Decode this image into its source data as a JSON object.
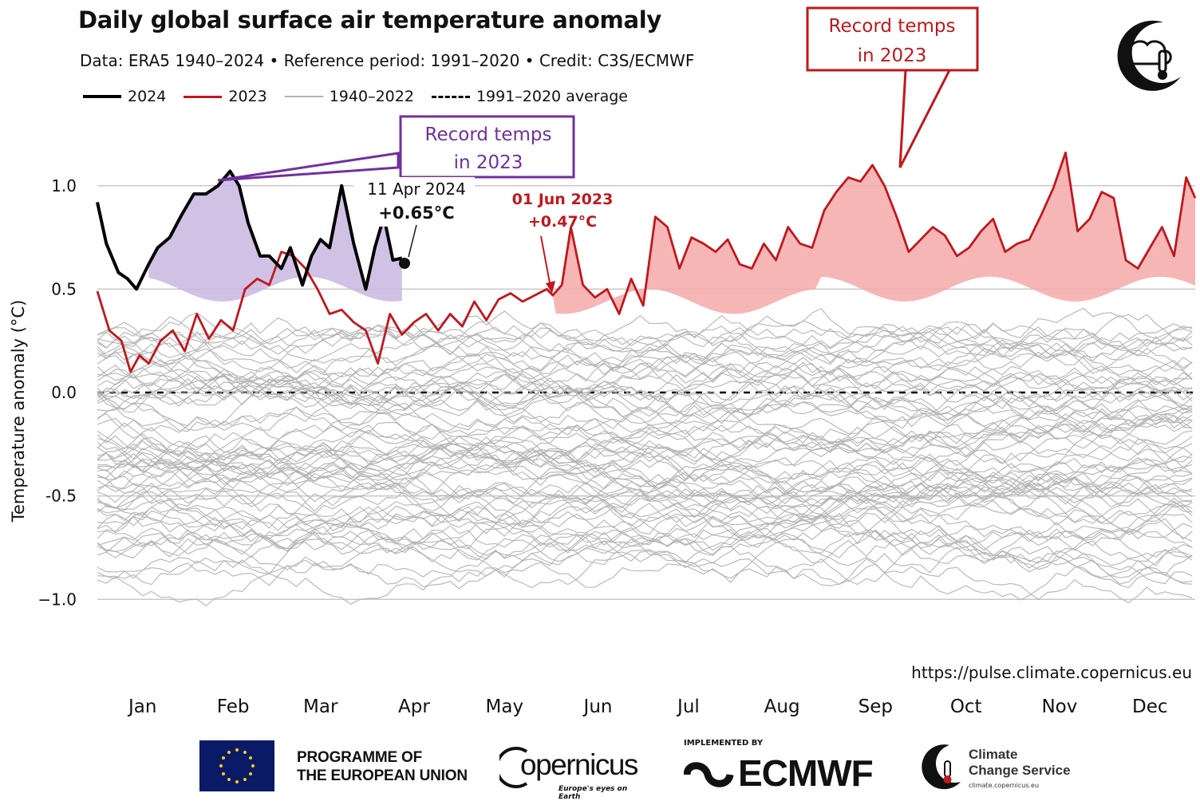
{
  "header": {
    "title": "Daily global surface air temperature anomaly",
    "subtitle": "Data: ERA5 1940–2024  •  Reference period: 1991–2020  •  Credit: C3S/ECMWF"
  },
  "legend": [
    {
      "label": "2024",
      "color": "#000000",
      "style": "solid-thick"
    },
    {
      "label": "2023",
      "color": "#c0181d",
      "style": "solid"
    },
    {
      "label": "1940–2022",
      "color": "#b3b3b3",
      "style": "solid-thin"
    },
    {
      "label": "1991–2020 average",
      "color": "#000000",
      "style": "dashed"
    }
  ],
  "annotations": {
    "record_2024_box": [
      "Record temps",
      "in 2023"
    ],
    "record_2023_box": [
      "Record temps",
      "in 2023"
    ],
    "latest_2024_date": "11 Apr 2024",
    "latest_2024_value": "+0.65°C",
    "jun_2023_date": "01 Jun 2023",
    "jun_2023_value": "+0.47°C"
  },
  "source_url": "https://pulse.climate.copernicus.eu",
  "footer": {
    "eu_line1": "PROGRAMME OF",
    "eu_line2": "THE EUROPEAN UNION",
    "copernicus_word": "opernicus",
    "copernicus_tagline": "Europe's eyes on Earth",
    "ecmwf_implemented": "IMPLEMENTED BY",
    "ecmwf_word": "ECMWF",
    "c3s_line1": "Climate",
    "c3s_line2": "Change Service",
    "c3s_url": "climate.copernicus.eu"
  },
  "colors": {
    "y2024": "#000000",
    "y2023": "#c0181d",
    "historic": "#b3b3b3",
    "fill2024": "#c9b6e0",
    "fill2023": "#f6a9a9",
    "purple": "#7030a0",
    "red": "#c0181d"
  },
  "chart_data": {
    "type": "line",
    "title": "Daily global surface air temperature anomaly",
    "xlabel": "",
    "ylabel": "Temperature anomaly (°C)",
    "x_unit": "day of year",
    "xlim": [
      1,
      365
    ],
    "ylim": [
      -1.35,
      1.3
    ],
    "yticks": [
      -1.0,
      -0.5,
      0.0,
      0.5,
      1.0
    ],
    "ytick_labels": [
      "−1.0",
      "-0.5",
      "0.0",
      "0.5",
      "1.0"
    ],
    "month_labels": [
      "Jan",
      "Feb",
      "Mar",
      "Apr",
      "May",
      "Jun",
      "Jul",
      "Aug",
      "Sep",
      "Oct",
      "Nov",
      "Dec"
    ],
    "month_label_days": [
      16,
      46,
      75,
      106,
      136,
      167,
      197,
      228,
      259,
      289,
      320,
      350
    ],
    "grid": true,
    "series": [
      {
        "name": "2024",
        "x": [
          1,
          4,
          8,
          11,
          14,
          18,
          21,
          25,
          29,
          33,
          37,
          41,
          45,
          48,
          51,
          55,
          58,
          62,
          65,
          69,
          72,
          75,
          78,
          82,
          86,
          90,
          93,
          96,
          99,
          102
        ],
        "y": [
          0.92,
          0.72,
          0.58,
          0.55,
          0.5,
          0.62,
          0.7,
          0.75,
          0.86,
          0.96,
          0.96,
          1.0,
          1.07,
          1.0,
          0.82,
          0.66,
          0.66,
          0.6,
          0.7,
          0.52,
          0.66,
          0.74,
          0.7,
          1.0,
          0.72,
          0.5,
          0.7,
          0.85,
          0.64,
          0.65
        ]
      },
      {
        "name": "2023",
        "x": [
          1,
          5,
          9,
          12,
          15,
          18,
          22,
          26,
          30,
          34,
          38,
          42,
          46,
          50,
          54,
          58,
          62,
          66,
          70,
          74,
          78,
          82,
          86,
          90,
          94,
          98,
          102,
          106,
          110,
          114,
          118,
          122,
          126,
          130,
          134,
          138,
          142,
          146,
          150,
          152,
          155,
          158,
          162,
          166,
          170,
          174,
          178,
          182,
          186,
          190,
          194,
          198,
          202,
          206,
          210,
          214,
          218,
          222,
          226,
          230,
          234,
          238,
          242,
          246,
          250,
          254,
          258,
          262,
          266,
          270,
          274,
          278,
          282,
          286,
          290,
          294,
          298,
          302,
          306,
          310,
          314,
          318,
          322,
          326,
          330,
          334,
          338,
          342,
          346,
          350,
          354,
          358,
          362,
          365
        ],
        "y": [
          0.49,
          0.3,
          0.25,
          0.1,
          0.18,
          0.14,
          0.25,
          0.3,
          0.2,
          0.38,
          0.26,
          0.35,
          0.3,
          0.5,
          0.55,
          0.52,
          0.68,
          0.66,
          0.6,
          0.5,
          0.38,
          0.4,
          0.34,
          0.3,
          0.14,
          0.38,
          0.28,
          0.34,
          0.38,
          0.3,
          0.38,
          0.32,
          0.44,
          0.35,
          0.45,
          0.48,
          0.44,
          0.47,
          0.5,
          0.47,
          0.52,
          0.8,
          0.52,
          0.46,
          0.5,
          0.38,
          0.55,
          0.42,
          0.85,
          0.8,
          0.6,
          0.75,
          0.72,
          0.68,
          0.74,
          0.62,
          0.6,
          0.72,
          0.64,
          0.8,
          0.72,
          0.7,
          0.88,
          0.97,
          1.04,
          1.02,
          1.1,
          1.0,
          0.85,
          0.68,
          0.74,
          0.8,
          0.76,
          0.66,
          0.7,
          0.78,
          0.84,
          0.68,
          0.72,
          0.74,
          0.86,
          0.99,
          1.16,
          0.78,
          0.84,
          0.97,
          0.94,
          0.64,
          0.6,
          0.7,
          0.8,
          0.66,
          1.04,
          0.94
        ]
      }
    ]
  }
}
